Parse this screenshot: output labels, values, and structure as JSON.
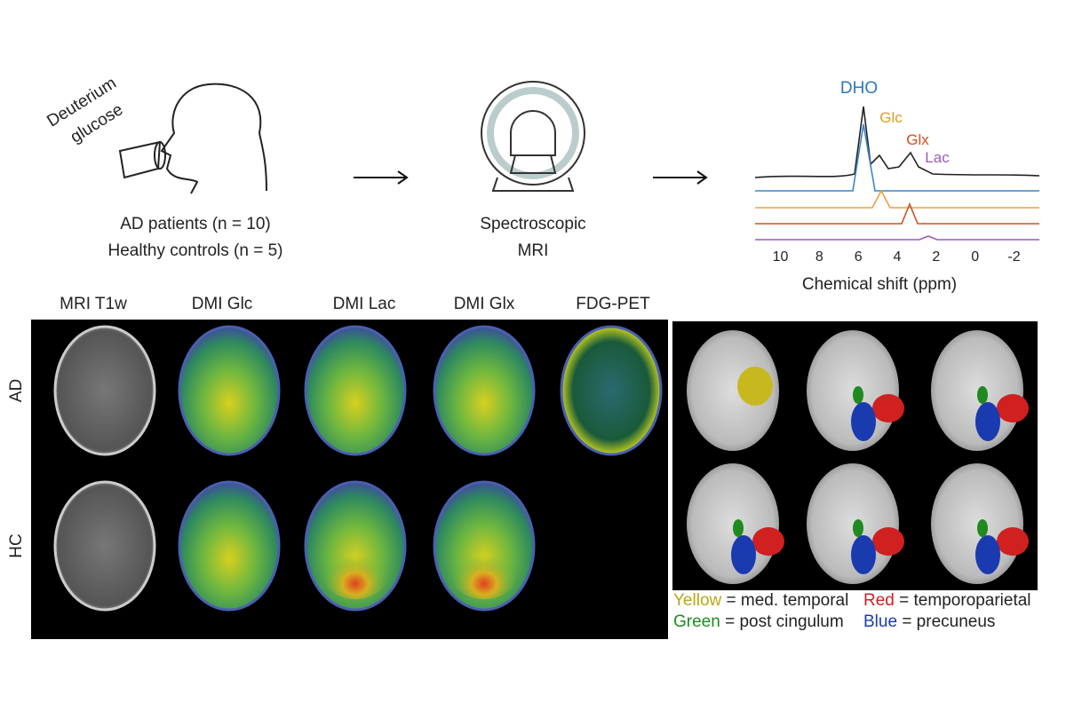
{
  "intake": {
    "cup_label": [
      "Deuterium",
      "glucose"
    ],
    "groups": [
      "AD patients (n = 10)",
      "Healthy controls (n = 5)"
    ]
  },
  "scanner": {
    "label": [
      "Spectroscopic",
      "MRI"
    ]
  },
  "spectrum": {
    "peaks": [
      "DHO",
      "Glc",
      "Glx",
      "Lac"
    ],
    "xlim": [
      11.3,
      -3.3
    ],
    "xticks": [
      10,
      8,
      6,
      4,
      2,
      0,
      -2
    ],
    "xlabel": "Chemical shift (ppm)"
  },
  "maps": {
    "columns": [
      "MRI T1w",
      "DMI Glc",
      "DMI Lac",
      "DMI Glx",
      "FDG-PET"
    ],
    "rows": [
      "AD",
      "HC"
    ]
  },
  "legend": [
    {
      "color": "Yellow",
      "text": "= med. temporal"
    },
    {
      "color": "Red",
      "text": "= temporoparietal"
    },
    {
      "color": "Green",
      "text": "= post cingulum"
    },
    {
      "color": "Blue",
      "text": "= precuneus"
    }
  ]
}
